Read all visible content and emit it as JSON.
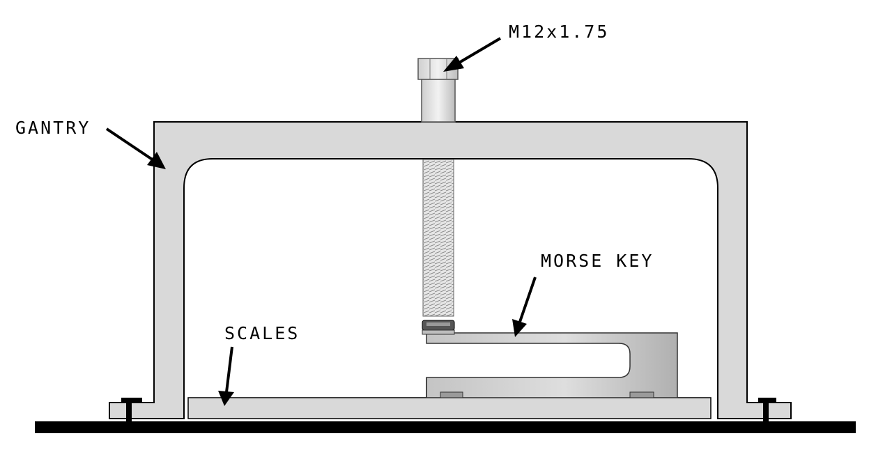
{
  "labels": {
    "bolt": "M12x1.75",
    "gantry": "GANTRY",
    "morse_key": "MORSE KEY",
    "scales": "SCALES"
  },
  "colors": {
    "line": "#000000",
    "part_fill": "#d9d9d9",
    "bolt_fill": "#e4e4e4",
    "key_dark": "#a9a9a9",
    "key_light": "#ececec",
    "base": "#000000"
  }
}
